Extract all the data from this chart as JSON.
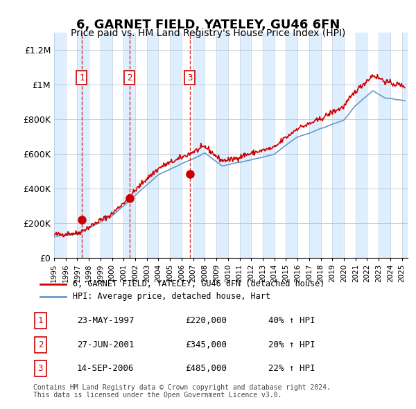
{
  "title": "6, GARNET FIELD, YATELEY, GU46 6FN",
  "subtitle": "Price paid vs. HM Land Registry's House Price Index (HPI)",
  "footer": "Contains HM Land Registry data © Crown copyright and database right 2024.\nThis data is licensed under the Open Government Licence v3.0.",
  "legend_line1": "6, GARNET FIELD, YATELEY, GU46 6FN (detached house)",
  "legend_line2": "HPI: Average price, detached house, Hart",
  "sales": [
    {
      "num": 1,
      "date": "23-MAY-1997",
      "price": 220000,
      "year": 1997.39,
      "hpi_pct": "40% ↑ HPI"
    },
    {
      "num": 2,
      "date": "27-JUN-2001",
      "price": 345000,
      "year": 2001.49,
      "hpi_pct": "20% ↑ HPI"
    },
    {
      "num": 3,
      "date": "14-SEP-2006",
      "price": 485000,
      "year": 2006.71,
      "hpi_pct": "22% ↑ HPI"
    }
  ],
  "ylim": [
    0,
    1300000
  ],
  "xlim_start": 1995.0,
  "xlim_end": 2025.5,
  "yticks": [
    0,
    200000,
    400000,
    600000,
    800000,
    1000000,
    1200000
  ],
  "ytick_labels": [
    "£0",
    "£200K",
    "£400K",
    "£600K",
    "£800K",
    "£1M",
    "£1.2M"
  ],
  "red_color": "#cc0000",
  "blue_color": "#6699cc",
  "bg_color": "#ddeeff",
  "bg_color2": "#ffffff",
  "grid_color": "#aabbcc",
  "title_fontsize": 13,
  "subtitle_fontsize": 10
}
